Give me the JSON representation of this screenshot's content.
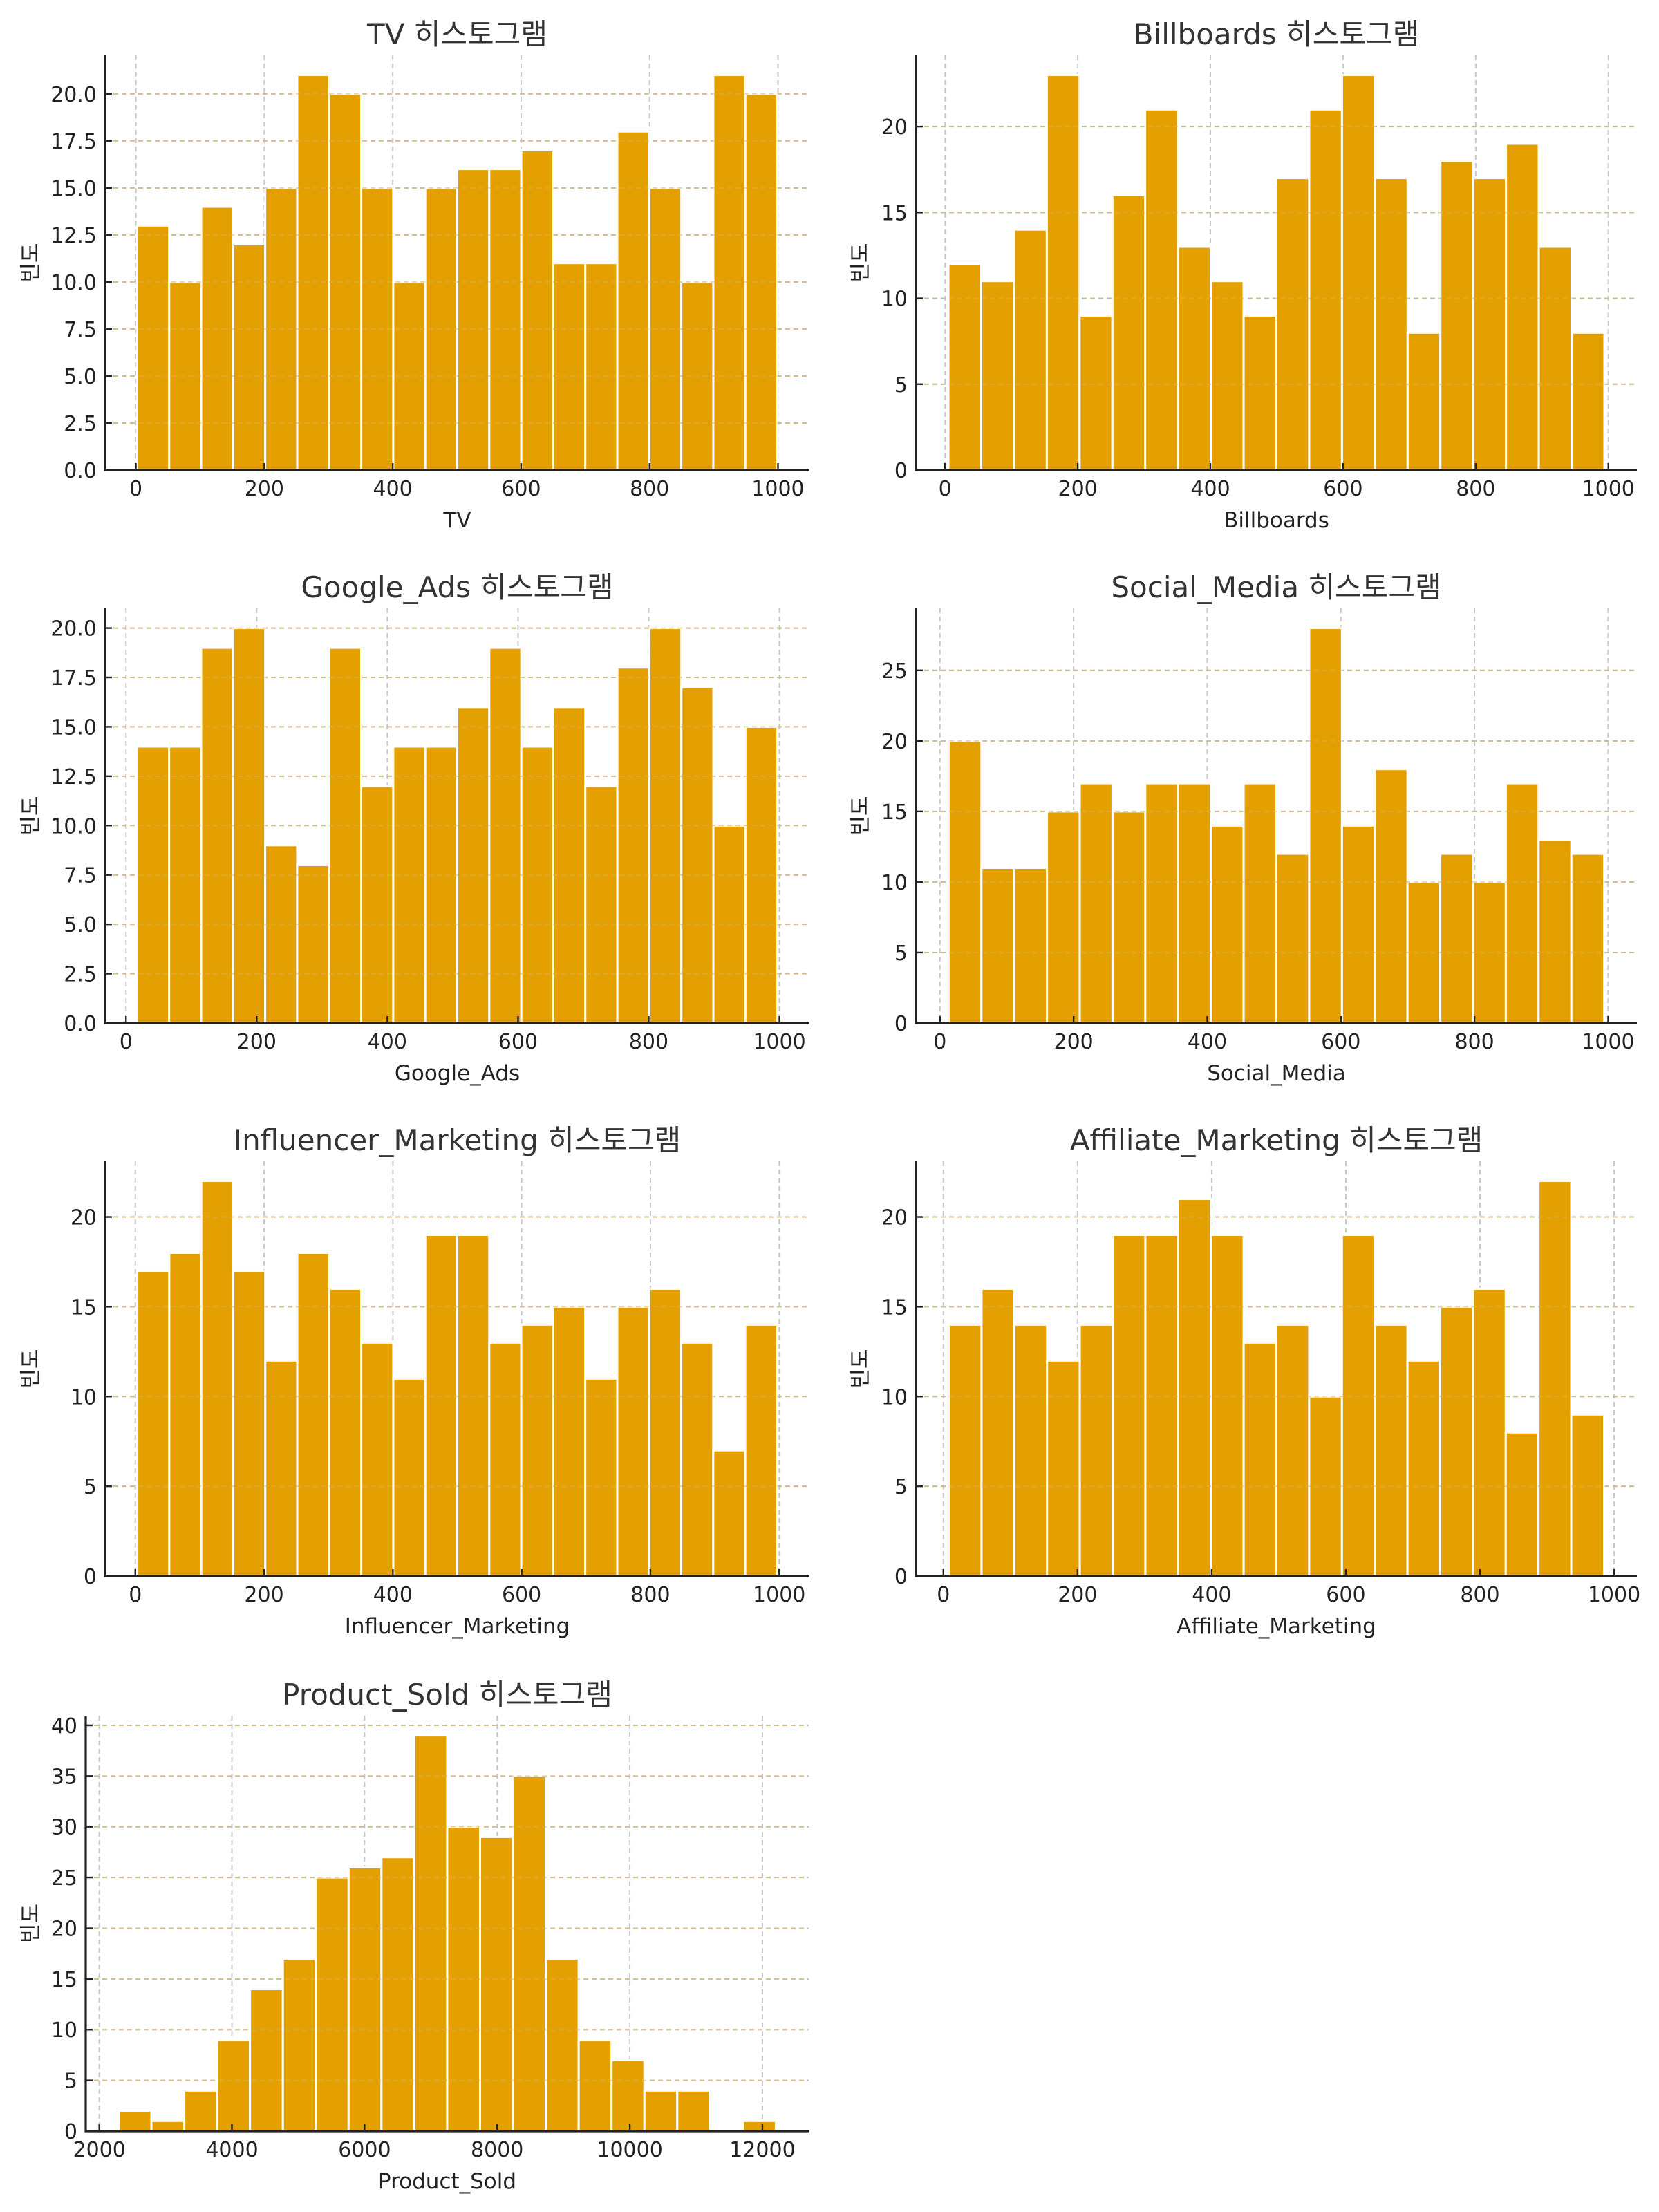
{
  "figure": {
    "bar_color": "#E3A000",
    "grid_color": "#C8C8C8",
    "text_color": "#222222",
    "title_color": "#333333"
  },
  "chart_data": [
    {
      "type": "bar",
      "subtype": "histogram",
      "title": "TV 히스토그램",
      "xlabel": "TV",
      "ylabel": "빈도",
      "bins": 20,
      "bin_range": [
        2,
        999
      ],
      "values": [
        13,
        10,
        14,
        12,
        15,
        21,
        20,
        15,
        10,
        15,
        16,
        16,
        17,
        11,
        11,
        18,
        15,
        10,
        21,
        20
      ],
      "xlim": [
        -48,
        1049
      ],
      "ylim": [
        0,
        22.05
      ],
      "xticks": [
        0,
        200,
        400,
        600,
        800,
        1000
      ],
      "xtick_labels": [
        "0",
        "200",
        "400",
        "600",
        "800",
        "1000"
      ],
      "yticks": [
        0,
        2.5,
        5,
        7.5,
        10,
        12.5,
        15,
        17.5,
        20
      ],
      "ytick_labels": [
        "0.0",
        "2.5",
        "5.0",
        "7.5",
        "10.0",
        "12.5",
        "15.0",
        "17.5",
        "20.0"
      ],
      "grid": true
    },
    {
      "type": "bar",
      "subtype": "histogram",
      "title": "Billboards 히스토그램",
      "xlabel": "Billboards",
      "ylabel": "빈도",
      "bins": 20,
      "bin_range": [
        5,
        994
      ],
      "values": [
        12,
        11,
        14,
        23,
        9,
        16,
        21,
        13,
        11,
        9,
        17,
        21,
        23,
        17,
        8,
        18,
        17,
        19,
        13,
        8
      ],
      "xlim": [
        -44,
        1043
      ],
      "ylim": [
        0,
        24.15
      ],
      "xticks": [
        0,
        200,
        400,
        600,
        800,
        1000
      ],
      "xtick_labels": [
        "0",
        "200",
        "400",
        "600",
        "800",
        "1000"
      ],
      "yticks": [
        0,
        5,
        10,
        15,
        20
      ],
      "ytick_labels": [
        "0",
        "5",
        "10",
        "15",
        "20"
      ],
      "grid": true
    },
    {
      "type": "bar",
      "subtype": "histogram",
      "title": "Google_Ads 히스토그램",
      "xlabel": "Google_Ads",
      "ylabel": "빈도",
      "bins": 20,
      "bin_range": [
        17,
        997
      ],
      "values": [
        14,
        14,
        19,
        20,
        9,
        8,
        19,
        12,
        14,
        14,
        16,
        19,
        14,
        16,
        12,
        18,
        20,
        17,
        10,
        15
      ],
      "xlim": [
        -32,
        1046
      ],
      "ylim": [
        0,
        21
      ],
      "xticks": [
        0,
        200,
        400,
        600,
        800,
        1000
      ],
      "xtick_labels": [
        "0",
        "200",
        "400",
        "600",
        "800",
        "1000"
      ],
      "yticks": [
        0,
        2.5,
        5,
        7.5,
        10,
        12.5,
        15,
        17.5,
        20
      ],
      "ytick_labels": [
        "0.0",
        "2.5",
        "5.0",
        "7.5",
        "10.0",
        "12.5",
        "15.0",
        "17.5",
        "20.0"
      ],
      "grid": true
    },
    {
      "type": "bar",
      "subtype": "histogram",
      "title": "Social_Media 히스토그램",
      "xlabel": "Social_Media",
      "ylabel": "빈도",
      "bins": 20,
      "bin_range": [
        13,
        994
      ],
      "values": [
        20,
        11,
        11,
        15,
        17,
        15,
        17,
        17,
        14,
        17,
        12,
        28,
        14,
        18,
        10,
        12,
        10,
        17,
        13,
        12
      ],
      "xlim": [
        -36,
        1043
      ],
      "ylim": [
        0,
        29.4
      ],
      "xticks": [
        0,
        200,
        400,
        600,
        800,
        1000
      ],
      "xtick_labels": [
        "0",
        "200",
        "400",
        "600",
        "800",
        "1000"
      ],
      "yticks": [
        0,
        5,
        10,
        15,
        20,
        25
      ],
      "ytick_labels": [
        "0",
        "5",
        "10",
        "15",
        "20",
        "25"
      ],
      "grid": true
    },
    {
      "type": "bar",
      "subtype": "histogram",
      "title": "Influencer_Marketing 히스토그램",
      "xlabel": "Influencer_Marketing",
      "ylabel": "빈도",
      "bins": 20,
      "bin_range": [
        3,
        997
      ],
      "values": [
        17,
        18,
        22,
        17,
        12,
        18,
        16,
        13,
        11,
        19,
        19,
        13,
        14,
        15,
        11,
        15,
        16,
        13,
        7,
        14
      ],
      "xlim": [
        -47,
        1047
      ],
      "ylim": [
        0,
        23.1
      ],
      "xticks": [
        0,
        200,
        400,
        600,
        800,
        1000
      ],
      "xtick_labels": [
        "0",
        "200",
        "400",
        "600",
        "800",
        "1000"
      ],
      "yticks": [
        0,
        5,
        10,
        15,
        20
      ],
      "ytick_labels": [
        "0",
        "5",
        "10",
        "15",
        "20"
      ],
      "grid": true
    },
    {
      "type": "bar",
      "subtype": "histogram",
      "title": "Affiliate_Marketing 히스토그램",
      "xlabel": "Affiliate_Marketing",
      "ylabel": "빈도",
      "bins": 20,
      "bin_range": [
        8,
        985
      ],
      "values": [
        14,
        16,
        14,
        12,
        14,
        19,
        19,
        21,
        19,
        13,
        14,
        10,
        19,
        14,
        12,
        15,
        16,
        8,
        22,
        9
      ],
      "xlim": [
        -41,
        1034
      ],
      "ylim": [
        0,
        23.1
      ],
      "xticks": [
        0,
        200,
        400,
        600,
        800,
        1000
      ],
      "xtick_labels": [
        "0",
        "200",
        "400",
        "600",
        "800",
        "1000"
      ],
      "yticks": [
        0,
        5,
        10,
        15,
        20
      ],
      "ytick_labels": [
        "0",
        "5",
        "10",
        "15",
        "20"
      ],
      "grid": true
    },
    {
      "type": "bar",
      "subtype": "histogram",
      "title": "Product_Sold 히스토그램",
      "xlabel": "Product_Sold",
      "ylabel": "빈도",
      "bins": 20,
      "bin_range": [
        2290,
        12203
      ],
      "values": [
        2,
        1,
        4,
        9,
        14,
        17,
        25,
        26,
        27,
        39,
        30,
        29,
        35,
        17,
        9,
        7,
        4,
        4,
        0,
        1
      ],
      "xlim": [
        1795,
        12699
      ],
      "ylim": [
        0,
        40.95
      ],
      "xticks": [
        2000,
        4000,
        6000,
        8000,
        10000,
        12000
      ],
      "xtick_labels": [
        "2000",
        "4000",
        "6000",
        "8000",
        "10000",
        "12000"
      ],
      "yticks": [
        0,
        5,
        10,
        15,
        20,
        25,
        30,
        35,
        40
      ],
      "ytick_labels": [
        "0",
        "5",
        "10",
        "15",
        "20",
        "25",
        "30",
        "35",
        "40"
      ],
      "grid": true
    }
  ]
}
